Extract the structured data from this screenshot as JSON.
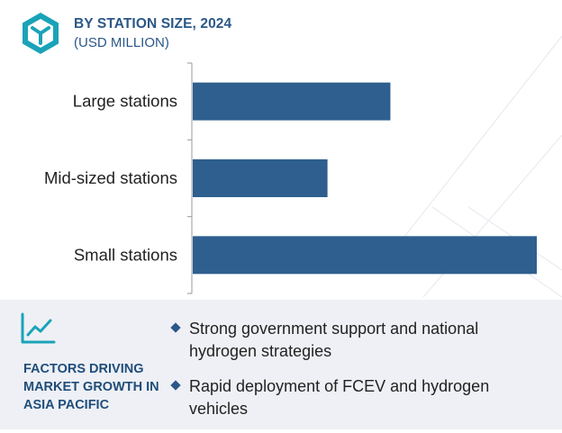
{
  "header": {
    "title": "BY STATION SIZE, 2024",
    "subtitle": "(USD MILLION)"
  },
  "chart_data": {
    "type": "bar",
    "orientation": "horizontal",
    "title": "BY STATION SIZE, 2024",
    "subtitle": "(USD MILLION)",
    "categories": [
      "Large stations",
      "Mid-sized stations",
      "Small stations"
    ],
    "values": [
      220,
      150,
      383
    ],
    "xlim": [
      0,
      400
    ],
    "grid": false,
    "legend": "none",
    "color": "#2e5f8e"
  },
  "factors": {
    "title": "FACTORS DRIVING MARKET GROWTH IN ASIA PACIFIC",
    "items": [
      "Strong government support and national hydrogen strategies",
      "Rapid deployment of FCEV and hydrogen vehicles"
    ]
  },
  "colors": {
    "accent": "#2b5788",
    "bar": "#2e5f8e",
    "panel": "#eef0f5",
    "icon_teal": "#1aa3b8"
  }
}
